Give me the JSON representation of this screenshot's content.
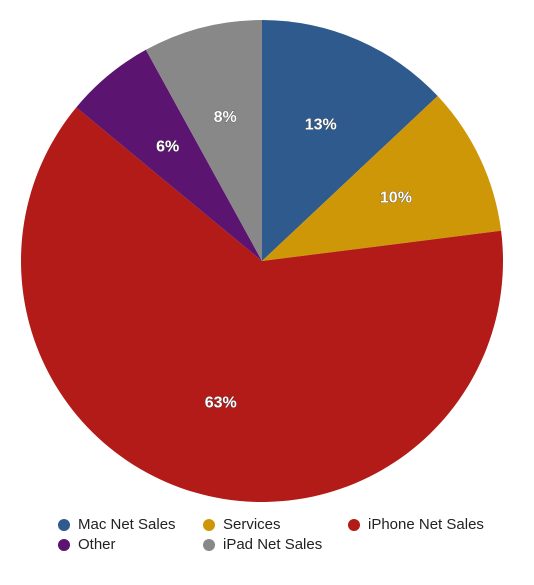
{
  "chart_data": {
    "type": "pie",
    "title": "",
    "start_angle_deg": 0,
    "direction": "clockwise",
    "slices": [
      {
        "name": "Mac Net Sales",
        "value": 13,
        "label": "13%",
        "color": "#2f5a8d"
      },
      {
        "name": "Services",
        "value": 10,
        "label": "10%",
        "color": "#cd9708"
      },
      {
        "name": "iPhone Net Sales",
        "value": 63,
        "label": "63%",
        "color": "#b21b17"
      },
      {
        "name": "Other",
        "value": 6,
        "label": "6%",
        "color": "#5b1470"
      },
      {
        "name": "iPad Net Sales",
        "value": 8,
        "label": "8%",
        "color": "#888888"
      }
    ],
    "legend_position": "bottom",
    "legend_order": [
      "Mac Net Sales",
      "Services",
      "iPhone Net Sales",
      "Other",
      "iPad Net Sales"
    ]
  }
}
